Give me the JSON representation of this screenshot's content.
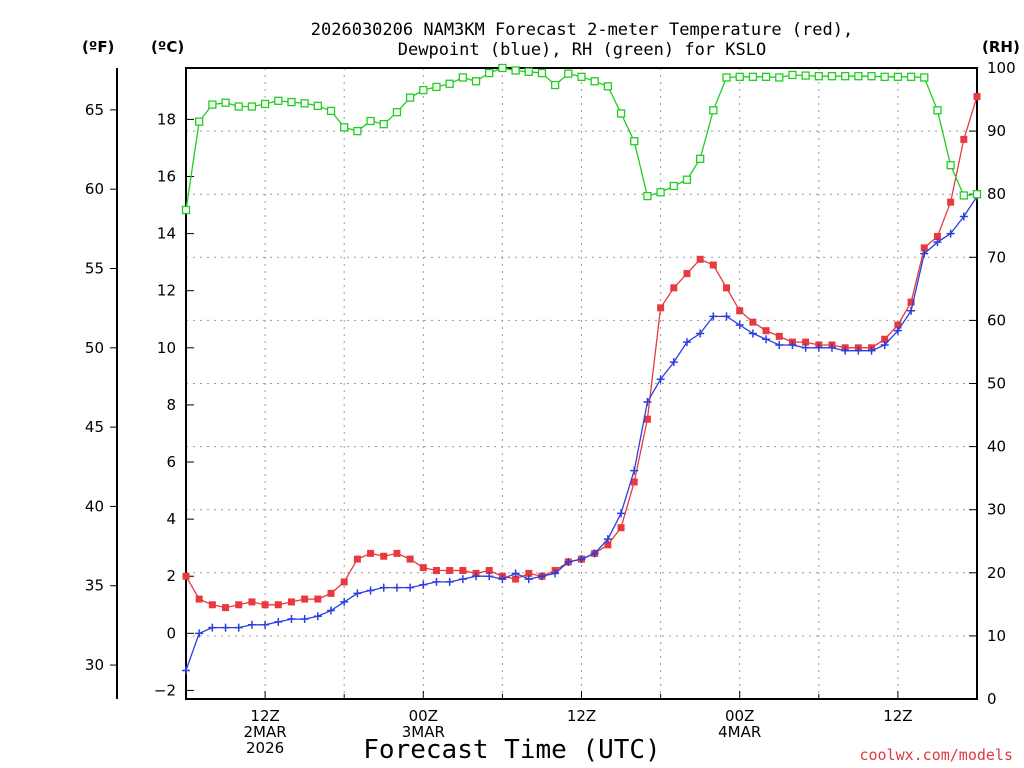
{
  "chart_data": {
    "type": "line",
    "title_line1": "2026030206 NAM3KM Forecast 2-meter Temperature (red),",
    "title_line2": "Dewpoint (blue), RH (green) for KSLO",
    "xlabel": "Forecast Time (UTC)",
    "credit": "coolwx.com/models",
    "units": {
      "fahrenheit": "(ºF)",
      "celsius": "(ºC)",
      "rh": "(RH)"
    },
    "x_hours_range": [
      6,
      66
    ],
    "celsius_range": [
      -2.3,
      19.8
    ],
    "rh_range": [
      0,
      100
    ],
    "x_ticks": [
      {
        "hour": 12,
        "lines": [
          "12Z",
          "2MAR",
          "2026"
        ]
      },
      {
        "hour": 24,
        "lines": [
          "00Z",
          "3MAR"
        ]
      },
      {
        "hour": 36,
        "lines": [
          "12Z"
        ]
      },
      {
        "hour": 48,
        "lines": [
          "00Z",
          "4MAR"
        ]
      },
      {
        "hour": 60,
        "lines": [
          "12Z"
        ]
      }
    ],
    "celsius_ticks": [
      "-2",
      "0",
      "2",
      "4",
      "6",
      "8",
      "10",
      "12",
      "14",
      "16",
      "18"
    ],
    "fahrenheit_ticks": [
      "30",
      "35",
      "40",
      "45",
      "50",
      "55",
      "60",
      "65"
    ],
    "rh_ticks": [
      "0",
      "10",
      "20",
      "30",
      "40",
      "50",
      "60",
      "70",
      "80",
      "90",
      "100"
    ],
    "series": [
      {
        "name": "Temperature",
        "color": "#e8393e",
        "marker": "filled-square",
        "values": [
          2.0,
          1.2,
          1.0,
          0.9,
          1.0,
          1.1,
          1.0,
          1.0,
          1.1,
          1.2,
          1.2,
          1.4,
          1.8,
          2.6,
          2.8,
          2.7,
          2.8,
          2.6,
          2.3,
          2.2,
          2.2,
          2.2,
          2.1,
          2.2,
          2.0,
          1.9,
          2.1,
          2.0,
          2.2,
          2.5,
          2.6,
          2.8,
          3.1,
          3.7,
          5.3,
          7.5,
          11.4,
          12.1,
          12.6,
          13.1,
          12.9,
          12.1,
          11.3,
          10.9,
          10.6,
          10.4,
          10.2,
          10.2,
          10.1,
          10.1,
          10.0,
          10.0,
          10.0,
          10.3,
          10.8,
          11.6,
          13.5,
          13.9,
          15.1,
          17.3,
          18.8
        ]
      },
      {
        "name": "Dewpoint",
        "color": "#2a3fe0",
        "marker": "plus",
        "values": [
          -1.3,
          0.0,
          0.2,
          0.2,
          0.2,
          0.3,
          0.3,
          0.4,
          0.5,
          0.5,
          0.6,
          0.8,
          1.1,
          1.4,
          1.5,
          1.6,
          1.6,
          1.6,
          1.7,
          1.8,
          1.8,
          1.9,
          2.0,
          2.0,
          1.9,
          2.1,
          1.9,
          2.0,
          2.1,
          2.5,
          2.6,
          2.8,
          3.3,
          4.2,
          5.7,
          8.1,
          8.9,
          9.5,
          10.2,
          10.5,
          11.1,
          11.1,
          10.8,
          10.5,
          10.3,
          10.1,
          10.1,
          10.0,
          10.0,
          10.0,
          9.9,
          9.9,
          9.9,
          10.1,
          10.6,
          11.3,
          13.3,
          13.7,
          14.0,
          14.6,
          15.3
        ]
      },
      {
        "name": "RH",
        "color": "#1fcf1f",
        "marker": "open-square",
        "values": [
          77.5,
          91.5,
          94.2,
          94.5,
          93.9,
          93.9,
          94.3,
          94.8,
          94.6,
          94.4,
          94.0,
          93.2,
          90.6,
          90.0,
          91.6,
          91.1,
          93.0,
          95.3,
          96.5,
          97.0,
          97.5,
          98.5,
          97.9,
          99.2,
          100.0,
          99.6,
          99.4,
          99.2,
          97.3,
          99.1,
          98.6,
          97.9,
          97.1,
          92.8,
          88.4,
          79.7,
          80.3,
          81.3,
          82.3,
          85.6,
          93.3,
          98.5,
          98.6,
          98.6,
          98.6,
          98.5,
          98.9,
          98.8,
          98.7,
          98.7,
          98.7,
          98.7,
          98.7,
          98.6,
          98.6,
          98.6,
          98.5,
          93.3,
          84.6,
          79.8,
          80.0
        ]
      }
    ]
  }
}
